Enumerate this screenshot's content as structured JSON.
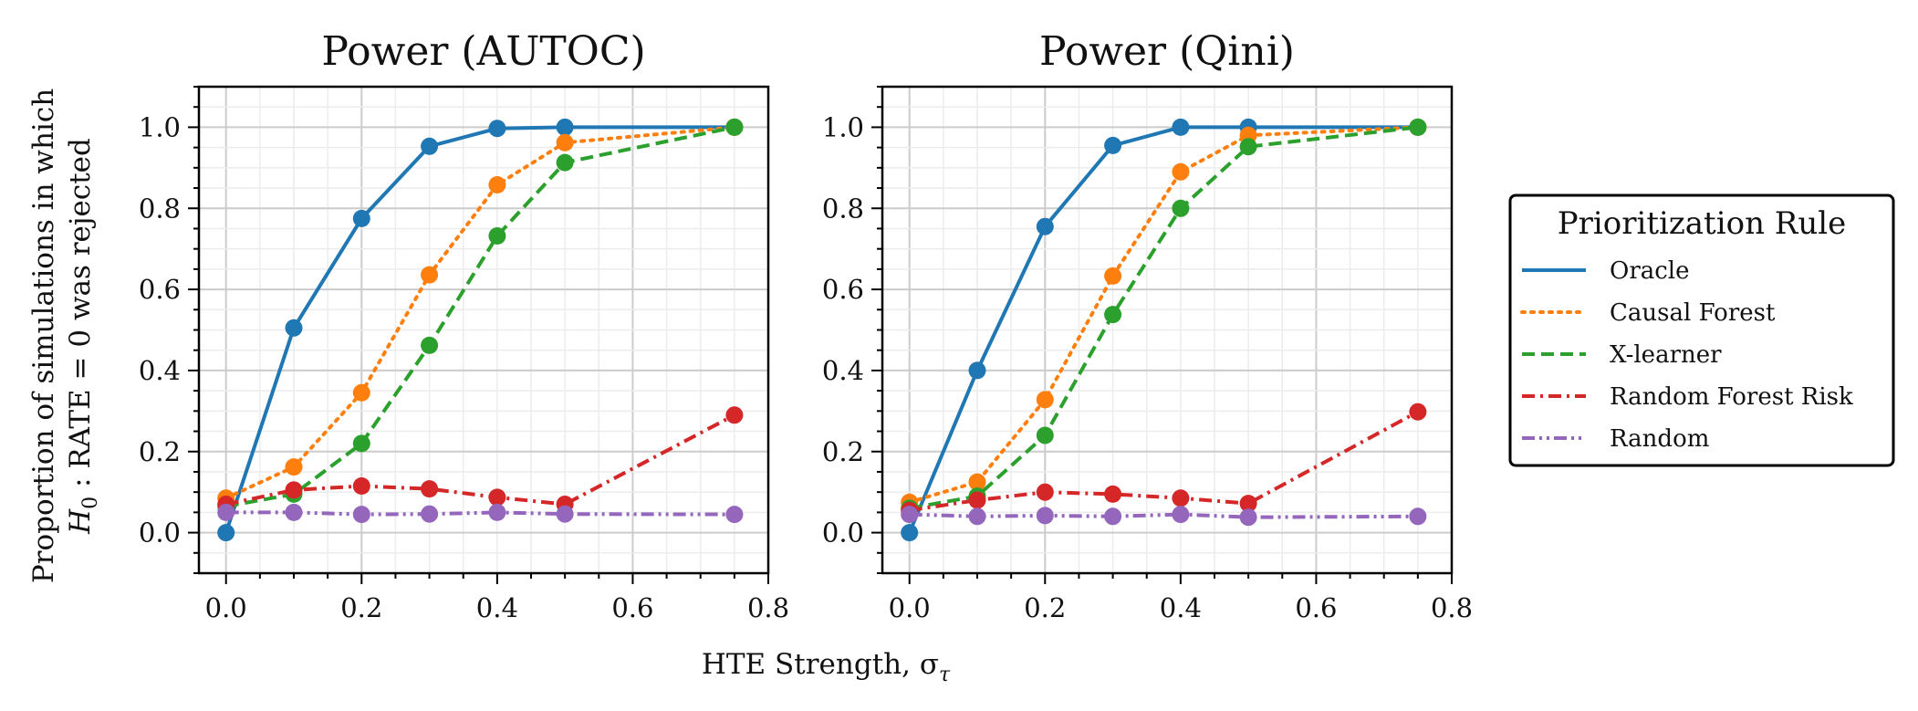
{
  "chart_data": [
    {
      "type": "line",
      "title": "Power (AUTOC)",
      "xlim": [
        -0.04,
        0.8
      ],
      "ylim": [
        -0.1,
        1.1
      ],
      "xticks": [
        "0.0",
        "0.2",
        "0.4",
        "0.6",
        "0.8"
      ],
      "yticks": [
        "0.0",
        "0.2",
        "0.4",
        "0.6",
        "0.8",
        "1.0"
      ],
      "grid": true,
      "x": [
        0.0,
        0.1,
        0.2,
        0.3,
        0.4,
        0.5,
        0.75
      ],
      "series": [
        {
          "name": "Oracle",
          "values": [
            0.0,
            0.505,
            0.775,
            0.953,
            0.997,
            1.0,
            1.0
          ]
        },
        {
          "name": "Causal Forest",
          "values": [
            0.085,
            0.162,
            0.345,
            0.636,
            0.858,
            0.962,
            1.0
          ]
        },
        {
          "name": "X-learner",
          "values": [
            0.065,
            0.095,
            0.22,
            0.462,
            0.732,
            0.913,
            1.0
          ]
        },
        {
          "name": "Random Forest Risk",
          "values": [
            0.07,
            0.105,
            0.115,
            0.108,
            0.087,
            0.07,
            0.29
          ]
        },
        {
          "name": "Random",
          "values": [
            0.05,
            0.05,
            0.045,
            0.046,
            0.05,
            0.046,
            0.045
          ]
        }
      ]
    },
    {
      "type": "line",
      "title": "Power (Qini)",
      "xlim": [
        -0.04,
        0.8
      ],
      "ylim": [
        -0.1,
        1.1
      ],
      "xticks": [
        "0.0",
        "0.2",
        "0.4",
        "0.6",
        "0.8"
      ],
      "yticks": [
        "0.0",
        "0.2",
        "0.4",
        "0.6",
        "0.8",
        "1.0"
      ],
      "grid": true,
      "x": [
        0.0,
        0.1,
        0.2,
        0.3,
        0.4,
        0.5,
        0.75
      ],
      "series": [
        {
          "name": "Oracle",
          "values": [
            0.0,
            0.4,
            0.755,
            0.955,
            1.0,
            1.0,
            1.0
          ]
        },
        {
          "name": "Causal Forest",
          "values": [
            0.075,
            0.125,
            0.328,
            0.633,
            0.89,
            0.98,
            1.0
          ]
        },
        {
          "name": "X-learner",
          "values": [
            0.06,
            0.09,
            0.24,
            0.538,
            0.8,
            0.952,
            1.0
          ]
        },
        {
          "name": "Random Forest Risk",
          "values": [
            0.055,
            0.08,
            0.1,
            0.095,
            0.085,
            0.072,
            0.298
          ]
        },
        {
          "name": "Random",
          "values": [
            0.045,
            0.04,
            0.042,
            0.04,
            0.045,
            0.038,
            0.04
          ]
        }
      ]
    }
  ],
  "xlabel": "HTE Strength, σ",
  "xlabel_sub": "τ",
  "ylabel_line1": "Proportion of simulations in which",
  "ylabel_line2_h": "H",
  "ylabel_line2_sub": "0",
  "ylabel_line2_rest": " : RATE = 0 was rejected",
  "legend": {
    "title": "Prioritization Rule",
    "position": "right",
    "entries": [
      "Oracle",
      "Causal Forest",
      "X-learner",
      "Random Forest Risk",
      "Random"
    ]
  },
  "series_styles": [
    {
      "name": "Oracle",
      "color": "#1f77b4",
      "dash": "solid"
    },
    {
      "name": "Causal Forest",
      "color": "#ff7f0e",
      "dash": "dotted"
    },
    {
      "name": "X-learner",
      "color": "#2ca02c",
      "dash": "dashed"
    },
    {
      "name": "Random Forest Risk",
      "color": "#d62728",
      "dash": "dashdot"
    },
    {
      "name": "Random",
      "color": "#9467bd",
      "dash": "dashdotdot"
    }
  ]
}
